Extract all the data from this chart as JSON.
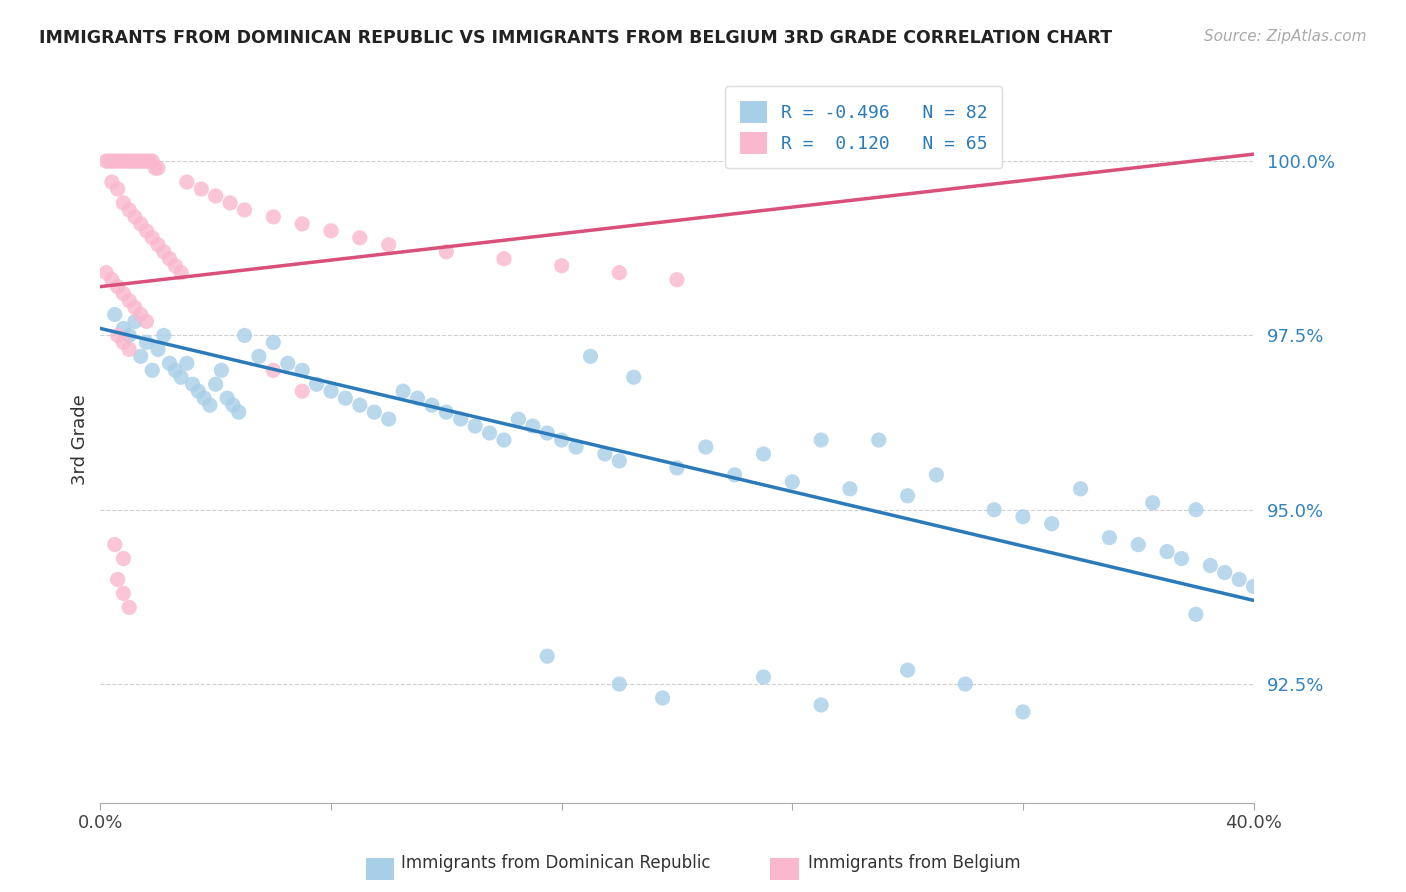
{
  "title": "IMMIGRANTS FROM DOMINICAN REPUBLIC VS IMMIGRANTS FROM BELGIUM 3RD GRADE CORRELATION CHART",
  "source": "Source: ZipAtlas.com",
  "ylabel": "3rd Grade",
  "ytick_labels": [
    "92.5%",
    "95.0%",
    "97.5%",
    "100.0%"
  ],
  "ytick_values": [
    0.925,
    0.95,
    0.975,
    1.0
  ],
  "xlim": [
    0.0,
    0.4
  ],
  "ylim": [
    0.908,
    1.012
  ],
  "legend_R1": "-0.496",
  "legend_N1": "82",
  "legend_R2": "0.120",
  "legend_N2": "65",
  "color_blue": "#a8cfe8",
  "color_pink": "#f9b8cd",
  "line_blue": "#2b7bba",
  "line_pink": "#d9507a",
  "blue_line_x0": 0.0,
  "blue_line_y0": 0.976,
  "blue_line_x1": 0.4,
  "blue_line_y1": 0.937,
  "pink_line_x0": 0.0,
  "pink_line_y0": 0.982,
  "pink_line_x1": 0.4,
  "pink_line_y1": 1.001,
  "blue_points": [
    [
      0.005,
      0.978
    ],
    [
      0.008,
      0.976
    ],
    [
      0.01,
      0.975
    ],
    [
      0.012,
      0.977
    ],
    [
      0.014,
      0.972
    ],
    [
      0.016,
      0.974
    ],
    [
      0.018,
      0.97
    ],
    [
      0.02,
      0.973
    ],
    [
      0.022,
      0.975
    ],
    [
      0.024,
      0.971
    ],
    [
      0.026,
      0.97
    ],
    [
      0.028,
      0.969
    ],
    [
      0.03,
      0.971
    ],
    [
      0.032,
      0.968
    ],
    [
      0.034,
      0.967
    ],
    [
      0.036,
      0.966
    ],
    [
      0.038,
      0.965
    ],
    [
      0.04,
      0.968
    ],
    [
      0.042,
      0.97
    ],
    [
      0.044,
      0.966
    ],
    [
      0.046,
      0.965
    ],
    [
      0.048,
      0.964
    ],
    [
      0.05,
      0.975
    ],
    [
      0.055,
      0.972
    ],
    [
      0.06,
      0.974
    ],
    [
      0.065,
      0.971
    ],
    [
      0.07,
      0.97
    ],
    [
      0.075,
      0.968
    ],
    [
      0.08,
      0.967
    ],
    [
      0.085,
      0.966
    ],
    [
      0.09,
      0.965
    ],
    [
      0.095,
      0.964
    ],
    [
      0.1,
      0.963
    ],
    [
      0.105,
      0.967
    ],
    [
      0.11,
      0.966
    ],
    [
      0.115,
      0.965
    ],
    [
      0.12,
      0.964
    ],
    [
      0.125,
      0.963
    ],
    [
      0.13,
      0.962
    ],
    [
      0.135,
      0.961
    ],
    [
      0.14,
      0.96
    ],
    [
      0.145,
      0.963
    ],
    [
      0.15,
      0.962
    ],
    [
      0.155,
      0.961
    ],
    [
      0.16,
      0.96
    ],
    [
      0.165,
      0.959
    ],
    [
      0.17,
      0.972
    ],
    [
      0.175,
      0.958
    ],
    [
      0.18,
      0.957
    ],
    [
      0.185,
      0.969
    ],
    [
      0.2,
      0.956
    ],
    [
      0.21,
      0.959
    ],
    [
      0.22,
      0.955
    ],
    [
      0.23,
      0.958
    ],
    [
      0.24,
      0.954
    ],
    [
      0.25,
      0.96
    ],
    [
      0.26,
      0.953
    ],
    [
      0.27,
      0.96
    ],
    [
      0.28,
      0.952
    ],
    [
      0.29,
      0.955
    ],
    [
      0.31,
      0.95
    ],
    [
      0.32,
      0.949
    ],
    [
      0.33,
      0.948
    ],
    [
      0.34,
      0.953
    ],
    [
      0.35,
      0.946
    ],
    [
      0.36,
      0.945
    ],
    [
      0.365,
      0.951
    ],
    [
      0.37,
      0.944
    ],
    [
      0.375,
      0.943
    ],
    [
      0.38,
      0.95
    ],
    [
      0.385,
      0.942
    ],
    [
      0.39,
      0.941
    ],
    [
      0.395,
      0.94
    ],
    [
      0.4,
      0.939
    ],
    [
      0.155,
      0.929
    ],
    [
      0.18,
      0.925
    ],
    [
      0.195,
      0.923
    ],
    [
      0.23,
      0.926
    ],
    [
      0.25,
      0.922
    ],
    [
      0.28,
      0.927
    ],
    [
      0.3,
      0.925
    ],
    [
      0.32,
      0.921
    ],
    [
      0.38,
      0.935
    ]
  ],
  "pink_points": [
    [
      0.002,
      1.0
    ],
    [
      0.003,
      1.0
    ],
    [
      0.004,
      1.0
    ],
    [
      0.005,
      1.0
    ],
    [
      0.006,
      1.0
    ],
    [
      0.007,
      1.0
    ],
    [
      0.008,
      1.0
    ],
    [
      0.009,
      1.0
    ],
    [
      0.01,
      1.0
    ],
    [
      0.011,
      1.0
    ],
    [
      0.012,
      1.0
    ],
    [
      0.013,
      1.0
    ],
    [
      0.014,
      1.0
    ],
    [
      0.015,
      1.0
    ],
    [
      0.016,
      1.0
    ],
    [
      0.017,
      1.0
    ],
    [
      0.018,
      1.0
    ],
    [
      0.019,
      0.999
    ],
    [
      0.02,
      0.999
    ],
    [
      0.004,
      0.997
    ],
    [
      0.006,
      0.996
    ],
    [
      0.008,
      0.994
    ],
    [
      0.01,
      0.993
    ],
    [
      0.012,
      0.992
    ],
    [
      0.014,
      0.991
    ],
    [
      0.016,
      0.99
    ],
    [
      0.018,
      0.989
    ],
    [
      0.02,
      0.988
    ],
    [
      0.022,
      0.987
    ],
    [
      0.024,
      0.986
    ],
    [
      0.026,
      0.985
    ],
    [
      0.028,
      0.984
    ],
    [
      0.002,
      0.984
    ],
    [
      0.004,
      0.983
    ],
    [
      0.006,
      0.982
    ],
    [
      0.008,
      0.981
    ],
    [
      0.01,
      0.98
    ],
    [
      0.012,
      0.979
    ],
    [
      0.014,
      0.978
    ],
    [
      0.016,
      0.977
    ],
    [
      0.03,
      0.997
    ],
    [
      0.035,
      0.996
    ],
    [
      0.04,
      0.995
    ],
    [
      0.045,
      0.994
    ],
    [
      0.05,
      0.993
    ],
    [
      0.06,
      0.992
    ],
    [
      0.07,
      0.991
    ],
    [
      0.08,
      0.99
    ],
    [
      0.09,
      0.989
    ],
    [
      0.1,
      0.988
    ],
    [
      0.12,
      0.987
    ],
    [
      0.14,
      0.986
    ],
    [
      0.16,
      0.985
    ],
    [
      0.18,
      0.984
    ],
    [
      0.2,
      0.983
    ],
    [
      0.006,
      0.975
    ],
    [
      0.008,
      0.974
    ],
    [
      0.01,
      0.973
    ],
    [
      0.06,
      0.97
    ],
    [
      0.07,
      0.967
    ],
    [
      0.005,
      0.945
    ],
    [
      0.008,
      0.943
    ],
    [
      0.006,
      0.94
    ],
    [
      0.008,
      0.938
    ],
    [
      0.01,
      0.936
    ]
  ]
}
